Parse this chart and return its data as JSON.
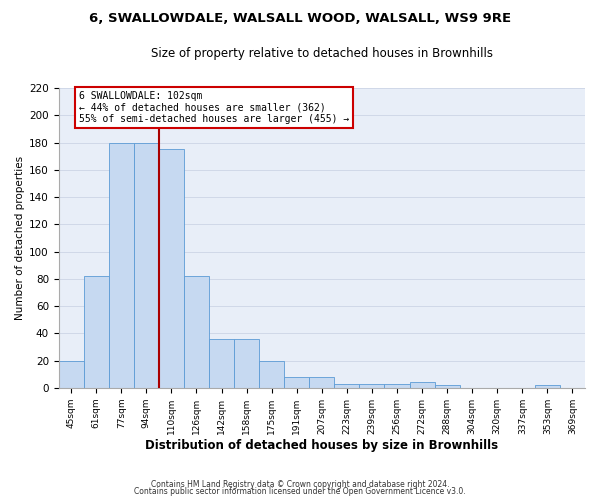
{
  "title": "6, SWALLOWDALE, WALSALL WOOD, WALSALL, WS9 9RE",
  "subtitle": "Size of property relative to detached houses in Brownhills",
  "xlabel": "Distribution of detached houses by size in Brownhills",
  "ylabel": "Number of detached properties",
  "bin_labels": [
    "45sqm",
    "61sqm",
    "77sqm",
    "94sqm",
    "110sqm",
    "126sqm",
    "142sqm",
    "158sqm",
    "175sqm",
    "191sqm",
    "207sqm",
    "223sqm",
    "239sqm",
    "256sqm",
    "272sqm",
    "288sqm",
    "304sqm",
    "320sqm",
    "337sqm",
    "353sqm",
    "369sqm"
  ],
  "bar_heights": [
    20,
    82,
    180,
    180,
    175,
    82,
    36,
    36,
    20,
    8,
    8,
    3,
    3,
    3,
    4,
    2,
    0,
    0,
    0,
    2,
    0
  ],
  "bar_color": "#c6d9f1",
  "bar_edge_color": "#5b9bd5",
  "ylim": [
    0,
    220
  ],
  "yticks": [
    0,
    20,
    40,
    60,
    80,
    100,
    120,
    140,
    160,
    180,
    200,
    220
  ],
  "property_label": "6 SWALLOWDALE: 102sqm",
  "annotation_line1": "← 44% of detached houses are smaller (362)",
  "annotation_line2": "55% of semi-detached houses are larger (455) →",
  "red_line_bin_index": 3.5,
  "annotation_box_color": "#ffffff",
  "annotation_box_edge": "#cc0000",
  "red_line_color": "#aa0000",
  "grid_color": "#d0d8e8",
  "footer_line1": "Contains HM Land Registry data © Crown copyright and database right 2024.",
  "footer_line2": "Contains public sector information licensed under the Open Government Licence v3.0.",
  "background_color": "#ffffff",
  "plot_bg_color": "#e8eef8"
}
